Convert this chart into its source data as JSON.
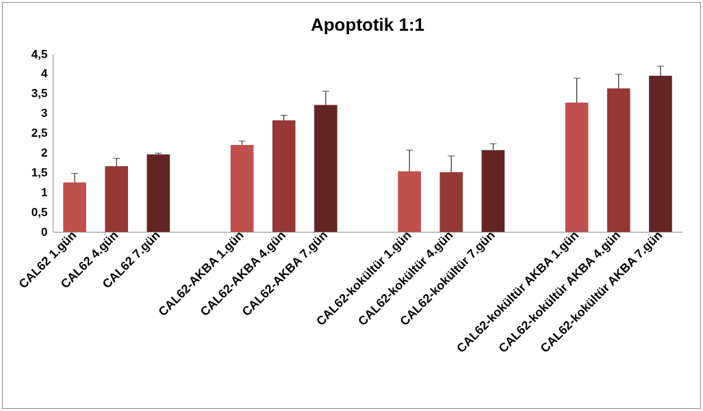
{
  "chart_data": {
    "type": "bar",
    "title": "Apoptotik 1:1",
    "categories": [
      "CAL62 1.gün",
      "CAL62 4.gün",
      "CAL62 7.gün",
      null,
      "CAL62-AKBA 1.gün",
      "CAL62-AKBA 4.gün",
      "CAL62-AKBA 7.gün",
      null,
      "CAL62-kokültür 1.gün",
      "CAL62-kokültür 4.gün",
      "CAL62-kokültür 7.gün",
      null,
      "CAL62-kokültür AKBA 1.gün",
      "CAL62-kokültür AKBA 4.gün",
      "CAL62-kokültür AKBA 7.gün"
    ],
    "values": [
      1.25,
      1.66,
      1.96,
      null,
      2.2,
      2.82,
      3.21,
      null,
      1.53,
      1.51,
      2.07,
      null,
      3.27,
      3.63,
      3.95
    ],
    "colors": [
      "#c0504d",
      "#953735",
      "#632523",
      null,
      "#c0504d",
      "#953735",
      "#632523",
      null,
      "#c0504d",
      "#953735",
      "#632523",
      null,
      "#c0504d",
      "#953735",
      "#632523"
    ],
    "errors": [
      [
        1.25,
        1.48
      ],
      [
        1.66,
        1.86
      ],
      [
        1.96,
        1.99
      ],
      null,
      [
        2.2,
        2.3
      ],
      [
        2.82,
        2.95
      ],
      [
        3.21,
        3.56
      ],
      null,
      [
        1.53,
        2.07
      ],
      [
        1.51,
        1.92
      ],
      [
        2.07,
        2.23
      ],
      null,
      [
        3.27,
        3.89
      ],
      [
        3.63,
        3.99
      ],
      [
        3.95,
        4.19
      ]
    ],
    "ylim": [
      0,
      4.5
    ],
    "yticks": [
      0,
      {
        "value": 0.5,
        "label": "0,5"
      },
      1,
      {
        "value": 1.5,
        "label": "1,5"
      },
      2,
      {
        "value": 2.5,
        "label": "2,5"
      },
      3,
      {
        "value": 3.5,
        "label": "3,5"
      },
      4,
      {
        "value": 4.5,
        "label": "4,5"
      }
    ],
    "grid": false
  }
}
